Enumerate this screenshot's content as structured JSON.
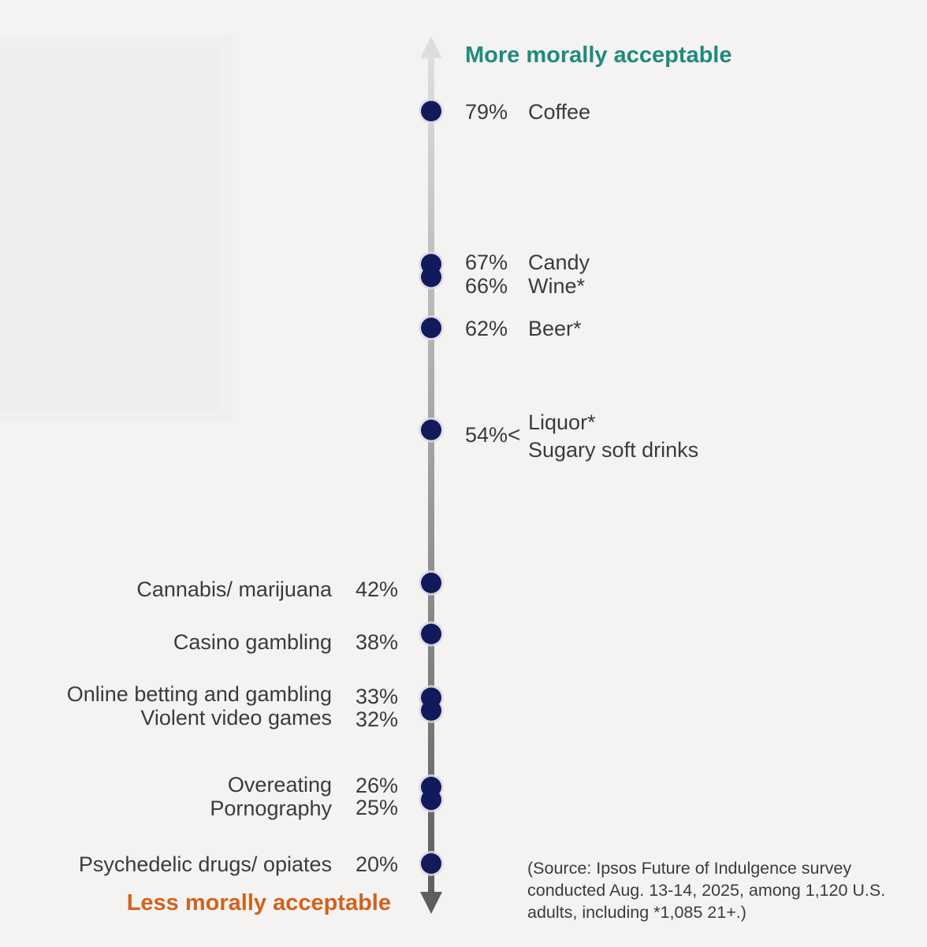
{
  "chart_data": {
    "type": "scatter",
    "title_top": "More morally acceptable",
    "title_bottom": "Less morally acceptable",
    "axis": "vertical",
    "unit": "%",
    "ylim": [
      18,
      82
    ],
    "colors": {
      "dot": "#121a5c",
      "top_title": "#1f8a7e",
      "bottom_title": "#d1621f",
      "axis_top": "#dedede",
      "axis_bottom": "#5e5e5e"
    },
    "points": [
      {
        "value": 79,
        "pct": "79%",
        "label": "Coffee",
        "side": "right"
      },
      {
        "value": 67,
        "pct": "67%",
        "label": "Candy",
        "side": "right"
      },
      {
        "value": 66,
        "pct": "66%",
        "label": "Wine*",
        "side": "right"
      },
      {
        "value": 62,
        "pct": "62%",
        "label": "Beer*",
        "side": "right"
      },
      {
        "value": 54,
        "pct": "54%",
        "label": "Liquor*",
        "side": "right"
      },
      {
        "value": 54,
        "pct": "54%",
        "label": "Sugary soft drinks",
        "side": "right"
      },
      {
        "value": 42,
        "pct": "42%",
        "label": "Cannabis/ marijuana",
        "side": "left"
      },
      {
        "value": 38,
        "pct": "38%",
        "label": "Casino gambling",
        "side": "left"
      },
      {
        "value": 33,
        "pct": "33%",
        "label": "Online betting and gambling",
        "side": "left"
      },
      {
        "value": 32,
        "pct": "32%",
        "label": "Violent video games",
        "side": "left"
      },
      {
        "value": 26,
        "pct": "26%",
        "label": "Overeating",
        "side": "left"
      },
      {
        "value": 25,
        "pct": "25%",
        "label": "Pornography",
        "side": "left"
      },
      {
        "value": 20,
        "pct": "20%",
        "label": "Psychedelic drugs/ opiates",
        "side": "left"
      }
    ]
  },
  "bracket_glyph": "<",
  "source_note": "(Source: Ipsos Future of Indulgence survey conducted Aug. 13-14, 2025, among 1,120 U.S. adults, including *1,085 21+.)"
}
